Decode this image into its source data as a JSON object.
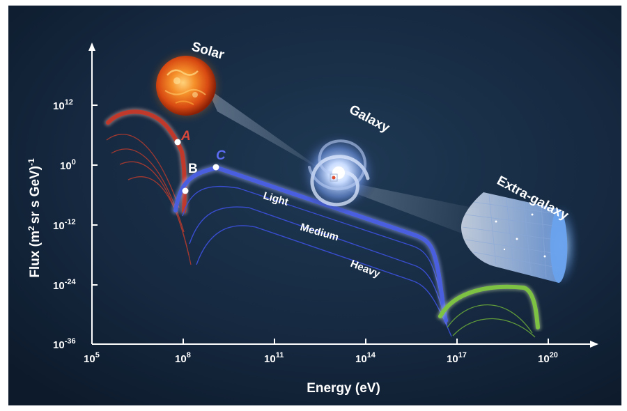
{
  "x_axis": {
    "title": "Energy (eV)",
    "ticks": [
      {
        "base": "10",
        "exp": "5"
      },
      {
        "base": "10",
        "exp": "8"
      },
      {
        "base": "10",
        "exp": "11"
      },
      {
        "base": "10",
        "exp": "14"
      },
      {
        "base": "10",
        "exp": "17"
      },
      {
        "base": "10",
        "exp": "20"
      }
    ]
  },
  "y_axis": {
    "title_main": "Flux (m",
    "title_sup": "2",
    "title_rest": "sr s GeV)",
    "title_sup2": "-1",
    "ticks": [
      {
        "base": "10",
        "exp": "12"
      },
      {
        "base": "10",
        "exp": "0"
      },
      {
        "base": "10",
        "exp": "-12"
      },
      {
        "base": "10",
        "exp": "-24"
      },
      {
        "base": "10",
        "exp": "-36"
      }
    ]
  },
  "sources": {
    "solar": "Solar",
    "galaxy": "Galaxy",
    "extra_galaxy": "Extra-galaxy"
  },
  "points": {
    "a": "A",
    "b": "B",
    "c": "C"
  },
  "components": {
    "light": "Light",
    "medium": "Medium",
    "heavy": "Heavy"
  },
  "colors": {
    "background": "#132338",
    "solar_curve": "#c0392b",
    "galactic_curve": "#4a5fe0",
    "extragalactic_curve": "#7dc242",
    "point_a_label": "#d9483b",
    "point_c_label": "#5b6cf0"
  },
  "icons": [
    "sun-image",
    "spiral-galaxy-image",
    "universe-cone-image"
  ]
}
